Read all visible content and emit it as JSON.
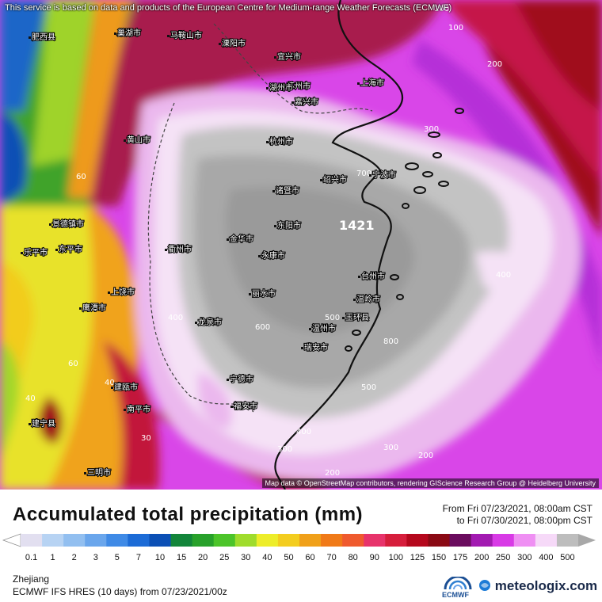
{
  "header": {
    "notice": "This service is based on data and products of the European Centre for Medium-range Weather Forecasts (ECMWF)"
  },
  "map": {
    "credit": "Map data © OpenStreetMap contributors, rendering GIScience Research Group @ Heidelberg University",
    "max_label": "1421",
    "contour_labels": [
      "100",
      "200",
      "300",
      "400",
      "500",
      "600",
      "700",
      "800",
      "300",
      "400",
      "500",
      "300",
      "200",
      "400",
      "200",
      "100",
      "60",
      "40",
      "60",
      "40",
      "30"
    ],
    "places": [
      {
        "name": "肥西县"
      },
      {
        "name": "巢湖市"
      },
      {
        "name": "马鞍山市"
      },
      {
        "name": "溧阳市"
      },
      {
        "name": "宜兴市"
      },
      {
        "name": "苏州市"
      },
      {
        "name": "上海市"
      },
      {
        "name": "嘉兴市"
      },
      {
        "name": "湖州市"
      },
      {
        "name": "杭州市"
      },
      {
        "name": "绍兴市"
      },
      {
        "name": "宁波市"
      },
      {
        "name": "诸暨市"
      },
      {
        "name": "金华市"
      },
      {
        "name": "东阳市"
      },
      {
        "name": "永康市"
      },
      {
        "name": "丽水市"
      },
      {
        "name": "台州市"
      },
      {
        "name": "温岭市"
      },
      {
        "name": "玉环县"
      },
      {
        "name": "温州市"
      },
      {
        "name": "瑞安市"
      },
      {
        "name": "衢州市"
      },
      {
        "name": "龙泉市"
      },
      {
        "name": "上饶市"
      },
      {
        "name": "鹰潭市"
      },
      {
        "name": "景德镇市"
      },
      {
        "name": "黄山市"
      },
      {
        "name": "宁德市"
      },
      {
        "name": "福安市"
      },
      {
        "name": "建瓯市"
      },
      {
        "name": "南平市"
      },
      {
        "name": "三明市"
      },
      {
        "name": "建宁县"
      },
      {
        "name": "东平市"
      },
      {
        "name": "乐平市"
      }
    ]
  },
  "footer": {
    "title": "Accumulated total precipitation (mm)",
    "period_from": "From Fri 07/23/2021, 08:00am CST",
    "period_to": "to Fri 07/30/2021, 08:00pm CST",
    "region": "Zhejiang",
    "model": "ECMWF IFS HRES (10 days) from 07/23/2021/00z",
    "ecmwf_logo": "ECMWF",
    "brand": "meteologix.com"
  },
  "legend": {
    "labels": [
      "0.1",
      "1",
      "2",
      "3",
      "5",
      "7",
      "10",
      "15",
      "20",
      "25",
      "30",
      "40",
      "50",
      "60",
      "70",
      "80",
      "90",
      "100",
      "125",
      "150",
      "175",
      "200",
      "250",
      "300",
      "400",
      "500"
    ],
    "colors": [
      "#e2dff0",
      "#b7d3f3",
      "#92bff0",
      "#6aa6ec",
      "#3f8ae6",
      "#1c6bd6",
      "#0b4fb5",
      "#13853a",
      "#28a12b",
      "#4cc42a",
      "#9fdc2c",
      "#eded2a",
      "#f3cd1f",
      "#f0a019",
      "#f07a18",
      "#ef5a2e",
      "#e7336b",
      "#d61e3c",
      "#b5081d",
      "#8a0a14",
      "#6a0c5e",
      "#a21ab1",
      "#d83ae6",
      "#ef8ff3",
      "#f6d9f8",
      "#bdbdbd"
    ]
  }
}
